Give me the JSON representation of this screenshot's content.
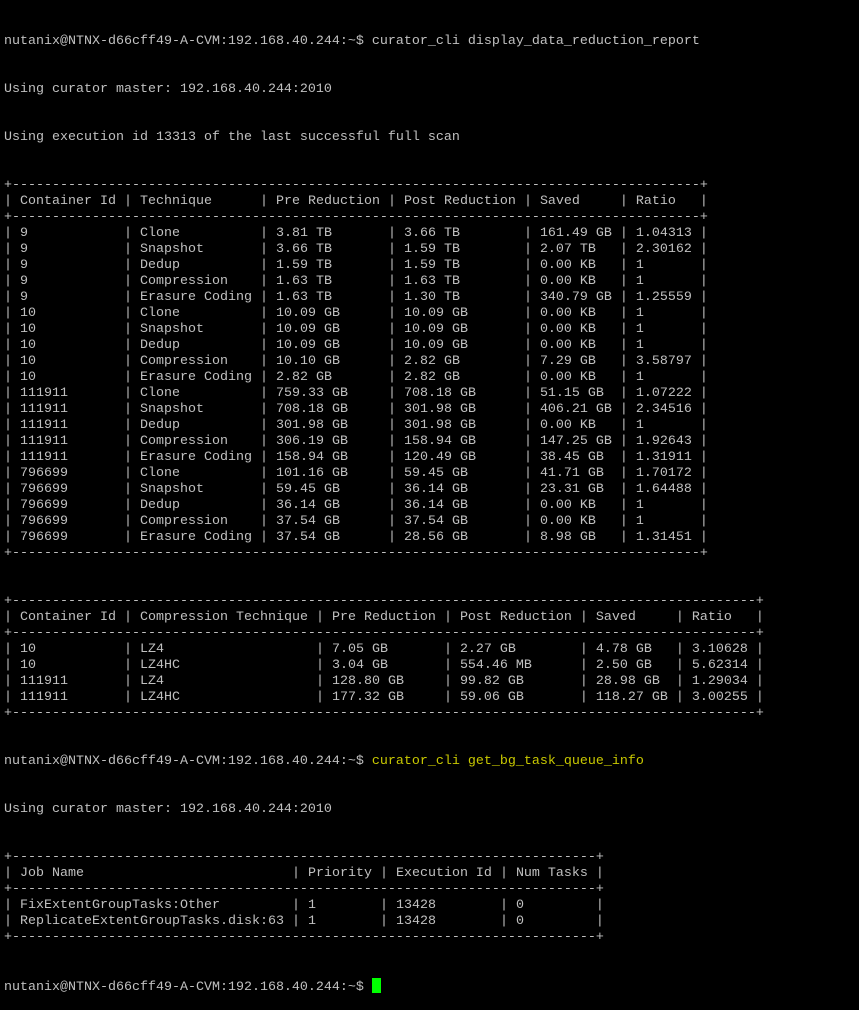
{
  "prompt": "nutanix@NTNX-d66cff49-A-CVM:192.168.40.244:~$ ",
  "command1": "curator_cli display_data_reduction_report",
  "output1": [
    "Using curator master: 192.168.40.244:2010",
    "Using execution id 13313 of the last successful full scan"
  ],
  "table1": {
    "headers": [
      "Container Id",
      "Technique",
      "Pre Reduction",
      "Post Reduction",
      "Saved",
      "Ratio"
    ],
    "rows": [
      [
        "9",
        "Clone",
        "3.81 TB",
        "3.66 TB",
        "161.49 GB",
        "1.04313"
      ],
      [
        "9",
        "Snapshot",
        "3.66 TB",
        "1.59 TB",
        "2.07 TB",
        "2.30162"
      ],
      [
        "9",
        "Dedup",
        "1.59 TB",
        "1.59 TB",
        "0.00 KB",
        "1"
      ],
      [
        "9",
        "Compression",
        "1.63 TB",
        "1.63 TB",
        "0.00 KB",
        "1"
      ],
      [
        "9",
        "Erasure Coding",
        "1.63 TB",
        "1.30 TB",
        "340.79 GB",
        "1.25559"
      ],
      [
        "10",
        "Clone",
        "10.09 GB",
        "10.09 GB",
        "0.00 KB",
        "1"
      ],
      [
        "10",
        "Snapshot",
        "10.09 GB",
        "10.09 GB",
        "0.00 KB",
        "1"
      ],
      [
        "10",
        "Dedup",
        "10.09 GB",
        "10.09 GB",
        "0.00 KB",
        "1"
      ],
      [
        "10",
        "Compression",
        "10.10 GB",
        "2.82 GB",
        "7.29 GB",
        "3.58797"
      ],
      [
        "10",
        "Erasure Coding",
        "2.82 GB",
        "2.82 GB",
        "0.00 KB",
        "1"
      ],
      [
        "111911",
        "Clone",
        "759.33 GB",
        "708.18 GB",
        "51.15 GB",
        "1.07222"
      ],
      [
        "111911",
        "Snapshot",
        "708.18 GB",
        "301.98 GB",
        "406.21 GB",
        "2.34516"
      ],
      [
        "111911",
        "Dedup",
        "301.98 GB",
        "301.98 GB",
        "0.00 KB",
        "1"
      ],
      [
        "111911",
        "Compression",
        "306.19 GB",
        "158.94 GB",
        "147.25 GB",
        "1.92643"
      ],
      [
        "111911",
        "Erasure Coding",
        "158.94 GB",
        "120.49 GB",
        "38.45 GB",
        "1.31911"
      ],
      [
        "796699",
        "Clone",
        "101.16 GB",
        "59.45 GB",
        "41.71 GB",
        "1.70172"
      ],
      [
        "796699",
        "Snapshot",
        "59.45 GB",
        "36.14 GB",
        "23.31 GB",
        "1.64488"
      ],
      [
        "796699",
        "Dedup",
        "36.14 GB",
        "36.14 GB",
        "0.00 KB",
        "1"
      ],
      [
        "796699",
        "Compression",
        "37.54 GB",
        "37.54 GB",
        "0.00 KB",
        "1"
      ],
      [
        "796699",
        "Erasure Coding",
        "37.54 GB",
        "28.56 GB",
        "8.98 GB",
        "1.31451"
      ]
    ]
  },
  "table2": {
    "headers": [
      "Container Id",
      "Compression Technique",
      "Pre Reduction",
      "Post Reduction",
      "Saved",
      "Ratio"
    ],
    "rows": [
      [
        "10",
        "LZ4",
        "7.05 GB",
        "2.27 GB",
        "4.78 GB",
        "3.10628"
      ],
      [
        "10",
        "LZ4HC",
        "3.04 GB",
        "554.46 MB",
        "2.50 GB",
        "5.62314"
      ],
      [
        "111911",
        "LZ4",
        "128.80 GB",
        "99.82 GB",
        "28.98 GB",
        "1.29034"
      ],
      [
        "111911",
        "LZ4HC",
        "177.32 GB",
        "59.06 GB",
        "118.27 GB",
        "3.00255"
      ]
    ]
  },
  "command2": "curator_cli get_bg_task_queue_info",
  "output2": [
    "Using curator master: 192.168.40.244:2010"
  ],
  "table3": {
    "headers": [
      "Job Name",
      "Priority",
      "Execution Id",
      "Num Tasks"
    ],
    "rows": [
      [
        "FixExtentGroupTasks:Other",
        "1",
        "13428",
        "0"
      ],
      [
        "ReplicateExtentGroupTasks.disk:63",
        "1",
        "13428",
        "0"
      ]
    ]
  },
  "colors": {
    "background": "#000000",
    "text": "#c0c0c0",
    "command_highlight": "#c8c800",
    "cursor": "#00ff00"
  }
}
